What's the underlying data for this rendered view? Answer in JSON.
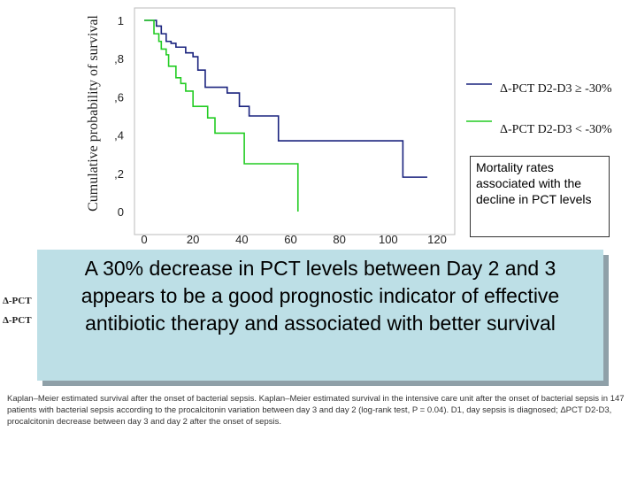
{
  "chart_data": {
    "type": "line",
    "ylabel": "Cumulative probability of survival",
    "xlim": [
      0,
      120
    ],
    "ylim": [
      0,
      1
    ],
    "x_ticks": [
      0,
      20,
      40,
      60,
      80,
      100,
      120
    ],
    "y_ticks": [
      {
        "value": 1,
        "label": "1"
      },
      {
        "value": 0.8,
        "label": ",8"
      },
      {
        "value": 0.6,
        "label": ",6"
      },
      {
        "value": 0.4,
        "label": ",4"
      },
      {
        "value": 0.2,
        "label": ",2"
      },
      {
        "value": 0,
        "label": "0"
      }
    ],
    "series": [
      {
        "name": "Δ-PCT D2-D3 ≥ -30%",
        "color": "#1a237e",
        "step": true,
        "x": [
          0,
          5,
          7,
          9,
          11,
          13,
          17,
          20,
          22,
          25,
          34,
          39,
          43,
          55,
          106,
          116
        ],
        "y": [
          1,
          0.97,
          0.93,
          0.89,
          0.88,
          0.86,
          0.83,
          0.81,
          0.74,
          0.65,
          0.62,
          0.55,
          0.5,
          0.37,
          0.18,
          0.18
        ]
      },
      {
        "name": "Δ-PCT D2-D3 < -30%",
        "color": "#22cc22",
        "step": true,
        "x": [
          0,
          4,
          6,
          7,
          9,
          10,
          13,
          15,
          17,
          20,
          26,
          29,
          41,
          63,
          63
        ],
        "y": [
          1,
          0.93,
          0.89,
          0.85,
          0.82,
          0.76,
          0.7,
          0.67,
          0.63,
          0.55,
          0.49,
          0.41,
          0.25,
          0.25,
          0
        ]
      }
    ]
  },
  "callout": {
    "text": "Mortality rates associated with the decline in PCT levels"
  },
  "conclusion": {
    "text": "A 30% decrease in PCT levels between Day 2 and 3 appears to be a good prognostic indicator of effective antibiotic therapy and associated with better survival"
  },
  "cut_labels": [
    "Δ-PCT",
    "Δ-PCT"
  ],
  "caption": {
    "text": "Kaplan–Meier estimated survival after the onset of bacterial sepsis. Kaplan–Meier estimated survival in the intensive care unit after the onset of bacterial sepsis in 147 patients with bacterial sepsis according to the procalcitonin variation between day 3 and day 2 (log-rank test, P = 0.04). D1, day sepsis is diagnosed; ΔPCT D2-D3, procalcitonin decrease between day 3 and day 2 after the onset of sepsis."
  }
}
